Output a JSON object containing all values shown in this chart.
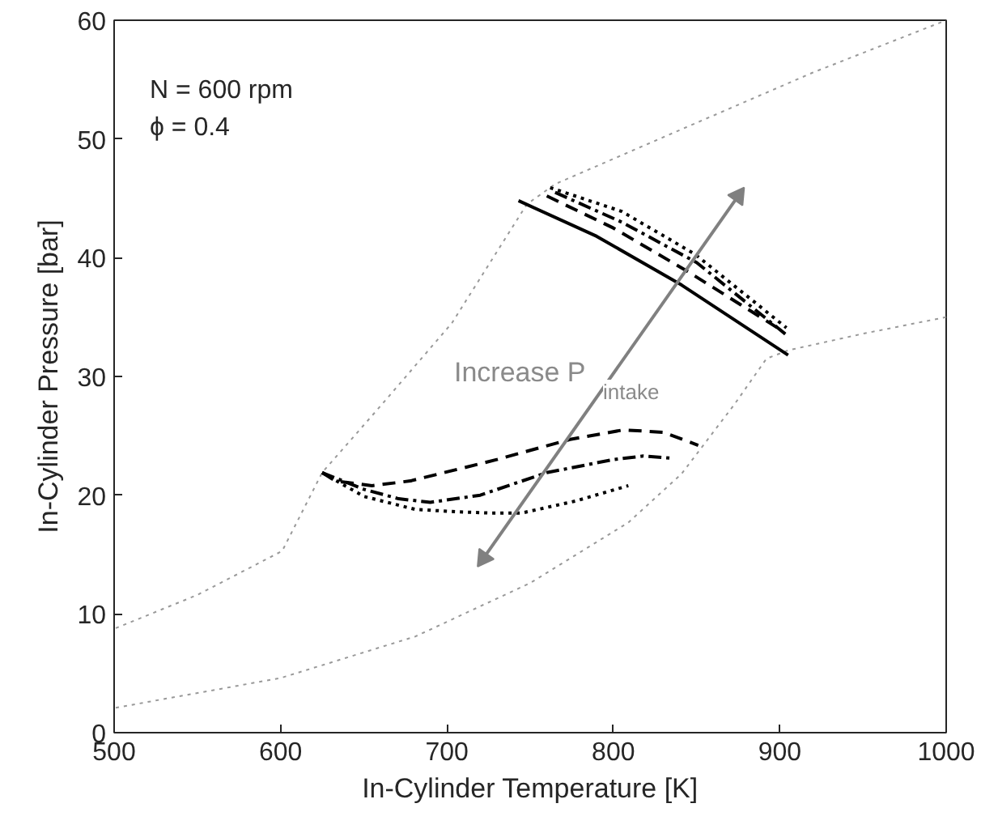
{
  "chart_data": {
    "type": "line",
    "xlabel": "In-Cylinder Temperature [K]",
    "ylabel": "In-Cylinder Pressure [bar]",
    "xlim": [
      500,
      1000
    ],
    "ylim": [
      0,
      60
    ],
    "xticks": [
      500,
      600,
      700,
      800,
      900,
      1000
    ],
    "yticks": [
      0,
      10,
      20,
      30,
      40,
      50,
      60
    ],
    "grid": false,
    "annotations": [
      "N = 600 rpm",
      "ϕ = 0.4",
      "Increase P$_{intake}$"
    ],
    "series": [
      {
        "color": "#999999",
        "line_style": "dotted",
        "x": [
          501,
          550,
          601,
          625,
          660,
          703,
          748,
          765,
          844,
          920,
          1000
        ],
        "values": [
          8.8,
          11.6,
          15.3,
          21.9,
          27.5,
          34.5,
          44.5,
          46.2,
          51,
          55.6,
          60
        ]
      },
      {
        "color": "#999999",
        "line_style": "dotted",
        "x": [
          501,
          600,
          681,
          750,
          809,
          841,
          873,
          892,
          905,
          950,
          1000
        ],
        "values": [
          2.1,
          4.6,
          8.1,
          12.6,
          17.7,
          21.8,
          27.7,
          31.5,
          32.2,
          33.6,
          35
        ]
      },
      {
        "color": "#000000",
        "line_style": "solid",
        "x": [
          743,
          790,
          841,
          905
        ],
        "values": [
          44.8,
          41.8,
          37.7,
          31.8
        ]
      },
      {
        "color": "#000000",
        "line_style": "dashed",
        "x": [
          760,
          800,
          844,
          902
        ],
        "values": [
          45.2,
          42.5,
          38.9,
          33.8
        ]
      },
      {
        "color": "#000000",
        "line_style": "dashdot",
        "x": [
          765,
          805,
          850,
          904
        ],
        "values": [
          45.5,
          43,
          39.6,
          33.5
        ]
      },
      {
        "color": "#000000",
        "line_style": "dotted",
        "x": [
          762,
          805,
          849,
          904
        ],
        "values": [
          45.9,
          43.9,
          40.3,
          34.1
        ]
      },
      {
        "color": "#000000",
        "line_style": "dashed",
        "x": [
          625,
          633,
          655,
          678,
          730,
          774,
          806,
          830,
          851
        ],
        "values": [
          21.9,
          21.2,
          20.8,
          21.2,
          23,
          24.7,
          25.5,
          25.3,
          24.2
        ]
      },
      {
        "color": "#000000",
        "line_style": "dashdot",
        "x": [
          625,
          650,
          671,
          690,
          720,
          760,
          800,
          818,
          836
        ],
        "values": [
          21.9,
          20.5,
          19.7,
          19.4,
          20,
          21.9,
          23,
          23.3,
          23.1
        ]
      },
      {
        "color": "#000000",
        "line_style": "dotted",
        "x": [
          625,
          650,
          681,
          707,
          725,
          745,
          777,
          809
        ],
        "values": [
          21.9,
          19.9,
          18.8,
          18.6,
          18.5,
          18.5,
          19.5,
          20.8
        ]
      },
      {
        "color": "#808080",
        "line_style": "solid",
        "marker": "triangle",
        "x": [
          722,
          875
        ],
        "values": [
          14.7,
          45.2
        ]
      }
    ]
  }
}
